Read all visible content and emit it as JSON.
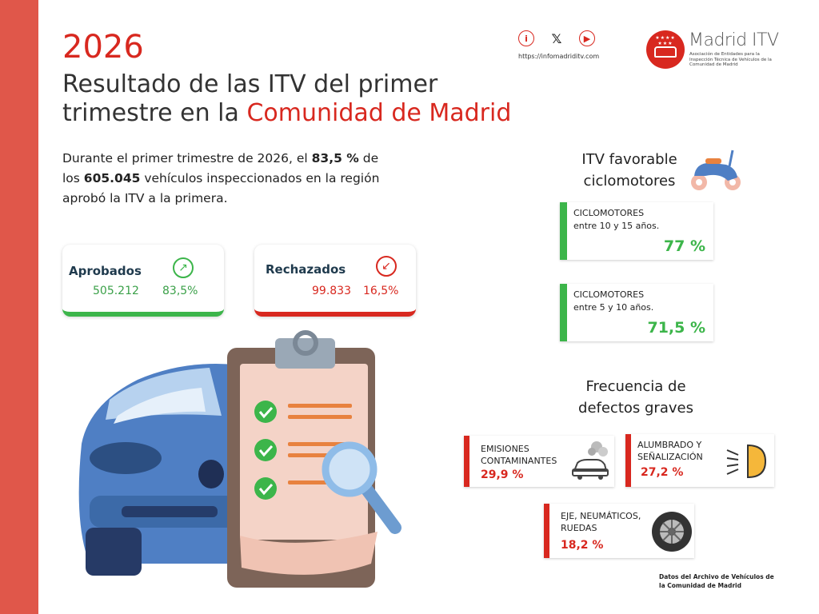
{
  "header": {
    "year": "2026",
    "title_line1": "Resultado de las ITV del primer",
    "title_line2_prefix": "trimestre en la ",
    "title_line2_highlight": "Comunidad de Madrid"
  },
  "social": {
    "icons": [
      "info-icon",
      "x-icon",
      "youtube-icon"
    ],
    "url": "https://infomadriditv.com"
  },
  "logo": {
    "name": "Madrid ITV",
    "subtitle": "Asociación de Entidades para la Inspección Técnica de Vehículos de la Comunidad de Madrid"
  },
  "intro": {
    "part1": "Durante el primer trimestre de 2026, el ",
    "bold1": "83,5 %",
    "part2": " de los ",
    "bold2": "605.045",
    "part3": " vehículos inspeccionados en la región aprobó la ITV a la primera."
  },
  "aprobados": {
    "label": "Aprobados",
    "count": "505.212",
    "percent": "83,5%",
    "color": "#3cb54a"
  },
  "rechazados": {
    "label": "Rechazados",
    "count": "99.833",
    "percent": "16,5%",
    "color": "#d8281f"
  },
  "ciclomotores": {
    "title_line1": "ITV favorable",
    "title_line2": "ciclomotores",
    "items": [
      {
        "label_line1": "CICLOMOTORES",
        "label_line2": "entre 10 y 15 años.",
        "value": "77 %"
      },
      {
        "label_line1": "CICLOMOTORES",
        "label_line2": "entre 5 y 10 años.",
        "value": "71,5 %"
      }
    ]
  },
  "defectos": {
    "title_line1": "Frecuencia de",
    "title_line2": "defectos graves",
    "items": [
      {
        "label_line1": "EMISIONES",
        "label_line2": "CONTAMINANTES",
        "value": "29,9 %",
        "icon": "car-smoke-icon"
      },
      {
        "label_line1": "ALUMBRADO Y",
        "label_line2": "SEÑALIZACIÓN",
        "value": "27,2 %",
        "icon": "headlight-icon"
      },
      {
        "label_line1": "EJE, NEUMÁTICOS,",
        "label_line2": "RUEDAS",
        "value": "18,2 %",
        "icon": "tire-icon"
      }
    ]
  },
  "footer": {
    "line1": "Datos del Archivo de Vehículos de",
    "line2": "la Comunidad de Madrid"
  },
  "colors": {
    "accent_red": "#d8281f",
    "sidebar": "#e0574a",
    "green": "#3cb54a"
  }
}
